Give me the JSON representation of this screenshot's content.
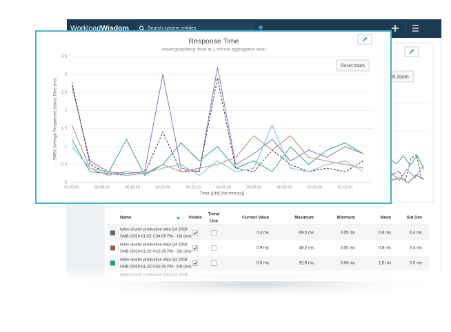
{
  "header": {
    "brand": [
      "Workload",
      "Wisdom"
    ],
    "search_placeholder": "Search system entities"
  },
  "back_chart": {
    "reset_zoom": "Reset zoom"
  },
  "chart": {
    "type": "line",
    "title": "Response Time",
    "subtitle": "viewing/updating chart at 1-minute aggregation level",
    "reset_zoom": "Reset zoom",
    "y_label": "SMB2 Average Response/Latency Time (ms)",
    "x_label": "Time ([dd] [hh:mm:ss])",
    "x": [
      0,
      300,
      600,
      900,
      1200,
      1500,
      1800,
      2100,
      2400,
      2700,
      3000,
      3300,
      3600,
      3900,
      4200,
      4500,
      4800
    ],
    "xlim": [
      0,
      4950
    ],
    "xticks": [
      {
        "value": 0,
        "label": "00:00:00"
      },
      {
        "value": 500,
        "label": "00:08:20"
      },
      {
        "value": 1000,
        "label": "00:16:40"
      },
      {
        "value": 1500,
        "label": "00:25:00"
      },
      {
        "value": 2000,
        "label": "00:33:20"
      },
      {
        "value": 2500,
        "label": "00:41:40"
      },
      {
        "value": 3000,
        "label": "00:50:00"
      },
      {
        "value": 3500,
        "label": "00:58:20"
      },
      {
        "value": 4000,
        "label": "01:06:40"
      },
      {
        "value": 4500,
        "label": "01:15:00"
      }
    ],
    "ylim": [
      0,
      3.5
    ],
    "yticks": [
      0,
      0.5,
      1,
      1.5,
      2,
      2.5,
      3,
      3.5
    ],
    "grid": true,
    "series": [
      {
        "color": "#8e7cc3",
        "values": [
          2.7,
          0.6,
          0.3,
          0.25,
          0.3,
          3.0,
          0.4,
          0.3,
          3.2,
          0.5,
          0.8,
          1.2,
          0.6,
          0.9,
          0.7,
          1.0,
          0.8
        ]
      },
      {
        "color": "#444444",
        "dashed": true,
        "values": [
          2.8,
          0.5,
          0.25,
          0.2,
          0.25,
          1.4,
          0.3,
          0.3,
          2.9,
          0.4,
          0.3,
          0.9,
          0.5,
          0.3,
          0.4,
          0.3,
          0.6
        ]
      },
      {
        "color": "#3aa88f",
        "values": [
          1.2,
          0.3,
          0.25,
          1.2,
          0.2,
          0.5,
          1.1,
          0.6,
          1.0,
          0.4,
          0.6,
          0.3,
          1.0,
          0.5,
          0.9,
          1.1,
          0.8
        ]
      },
      {
        "color": "#c98a7a",
        "values": [
          1.6,
          0.4,
          0.2,
          0.3,
          0.25,
          0.5,
          0.3,
          0.4,
          0.5,
          0.7,
          1.3,
          0.9,
          1.3,
          0.7,
          0.6,
          0.5,
          0.4
        ]
      },
      {
        "color": "#7fc6dc",
        "values": [
          1.0,
          0.4,
          0.3,
          0.2,
          0.25,
          0.4,
          0.5,
          0.2,
          0.6,
          0.3,
          0.4,
          1.6,
          0.4,
          0.3,
          0.5,
          0.6,
          0.3
        ]
      }
    ]
  },
  "table": {
    "columns": [
      "Name",
      "Visible",
      [
        "Trend",
        "Line"
      ],
      "Current Value",
      "Maximum",
      "Minimum",
      "Mean",
      "Std Dev"
    ],
    "rows": [
      {
        "color": "#666666",
        "name": [
          "Isilon cluster production data Q4 2018",
          "SMB (2019-01-22 2:34:05 PM - 16) (ms)"
        ],
        "visible": true,
        "trend": false,
        "values": [
          "0.4 ms",
          "69.5 ms",
          "0.05 ms",
          "0.6 ms",
          "0.4 ms"
        ]
      },
      {
        "color": "#8a5a4a",
        "name": [
          "Isilon cluster production data Q4 2018",
          "SMB (2019-01-22 4:15:25 PM - 32) (ms)"
        ],
        "visible": true,
        "trend": false,
        "values": [
          "0.9 ms",
          "48.2 ms",
          "0.05 ms",
          "0.8 ms",
          "0.4 ms"
        ]
      },
      {
        "color": "#1f9a7a",
        "name": [
          "Isilon cluster production data Q4 2018",
          "SMB (2019-01-22 5:56:42 PM - 64) (ms)"
        ],
        "visible": true,
        "trend": false,
        "values": [
          "0.6 ms",
          "92.9 ms",
          "0.06 ms",
          "1.5 ms",
          "0.5 ms"
        ]
      },
      {
        "name": [
          "Isilon cluster production data Q4 2018"
        ]
      }
    ]
  }
}
